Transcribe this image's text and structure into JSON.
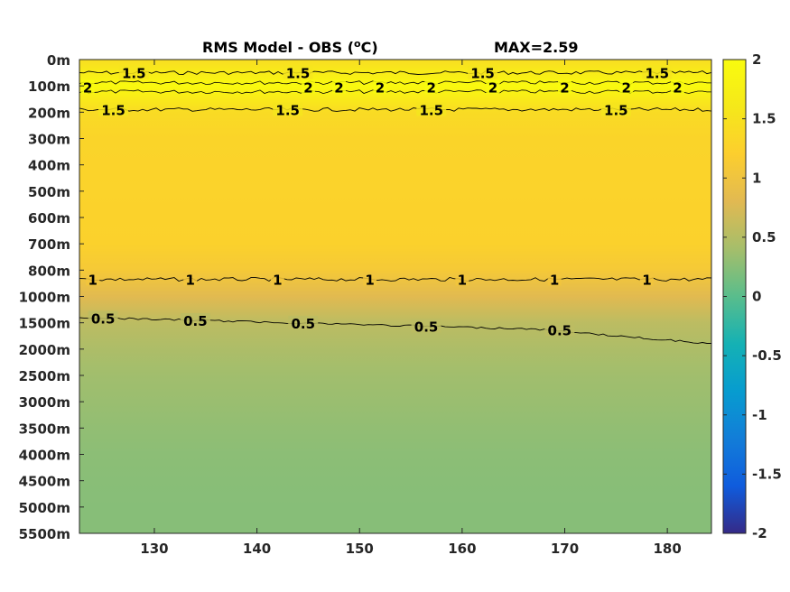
{
  "chart_data": {
    "type": "heatmap",
    "title": "RMS Model - OBS (",
    "title_unit_sup": "o",
    "title_unit_end": "C)",
    "max_label": "MAX=2.59",
    "x_ticks": [
      130,
      140,
      150,
      160,
      170,
      180
    ],
    "xlim": [
      122.7,
      184.3
    ],
    "y_labels": [
      "0m",
      "100m",
      "200m",
      "300m",
      "400m",
      "500m",
      "600m",
      "700m",
      "800m",
      "1000m",
      "1500m",
      "2000m",
      "2500m",
      "3000m",
      "3500m",
      "4000m",
      "4500m",
      "5000m",
      "5500m"
    ],
    "colorbar_ticks": [
      "2",
      "1.5",
      "1",
      "0.5",
      "0",
      "-0.5",
      "-1",
      "-1.5",
      "-2"
    ],
    "colorbar_range": [
      -2,
      2
    ],
    "depth_profile": [
      1.45,
      1.95,
      1.4,
      1.3,
      1.28,
      1.27,
      1.26,
      1.25,
      1.1,
      0.82,
      0.55,
      0.45,
      0.38,
      0.34,
      0.3,
      0.27,
      0.25,
      0.24,
      0.24
    ],
    "contours": [
      {
        "level": "1.5",
        "depth_index": 0.5,
        "x_labels": [
          128,
          144,
          162,
          179
        ]
      },
      {
        "level": "2",
        "depth_index": 1.05,
        "x_labels": [
          123.5,
          145,
          148,
          152,
          157,
          163,
          170,
          176,
          181
        ]
      },
      {
        "level": "1.5",
        "depth_index": 1.9,
        "x_labels": [
          126,
          143,
          157,
          175
        ]
      },
      {
        "level": "1",
        "depth_index": 8.35,
        "x_labels": [
          124,
          133.5,
          142,
          151,
          160,
          169,
          178
        ]
      },
      {
        "level": "0.5",
        "depth_index": 10.0,
        "x_labels": [
          125,
          134,
          144.5,
          156.5,
          169.5
        ]
      }
    ]
  }
}
